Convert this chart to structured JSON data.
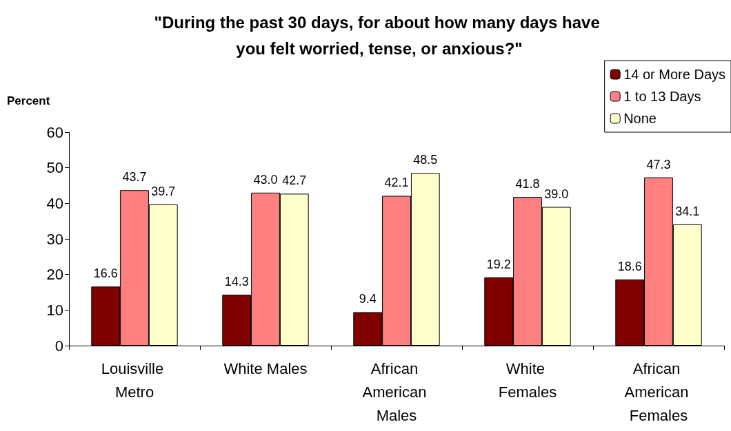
{
  "chart_data": {
    "type": "bar",
    "title": "\"During the past 30 days, for about how many days have you felt worried, tense, or anxious?\"",
    "ylabel": "Percent",
    "categories": [
      "Louisville Metro",
      "White Males",
      "African American Males",
      "White Females",
      "African American Females"
    ],
    "series": [
      {
        "name": "14 or More Days",
        "color": "#800000",
        "values": [
          16.6,
          14.3,
          9.4,
          19.2,
          18.6
        ],
        "value_labels": [
          "16.6",
          "14.3",
          "9.4",
          "19.2",
          "18.6"
        ]
      },
      {
        "name": "1 to 13 Days",
        "color": "#ff8080",
        "values": [
          43.7,
          43.0,
          42.1,
          41.8,
          47.3
        ],
        "value_labels": [
          "43.7",
          "43.0",
          "42.1",
          "41.8",
          "47.3"
        ]
      },
      {
        "name": "None",
        "color": "#ffffcc",
        "values": [
          39.7,
          42.7,
          48.5,
          39.0,
          34.1
        ],
        "value_labels": [
          "39.7",
          "42.7",
          "48.5",
          "39.0",
          "34.1"
        ]
      }
    ],
    "ylim": [
      0,
      60
    ],
    "yticks": [
      0,
      10,
      20,
      30,
      40,
      50,
      60
    ],
    "grid": false,
    "legend": "top right"
  }
}
